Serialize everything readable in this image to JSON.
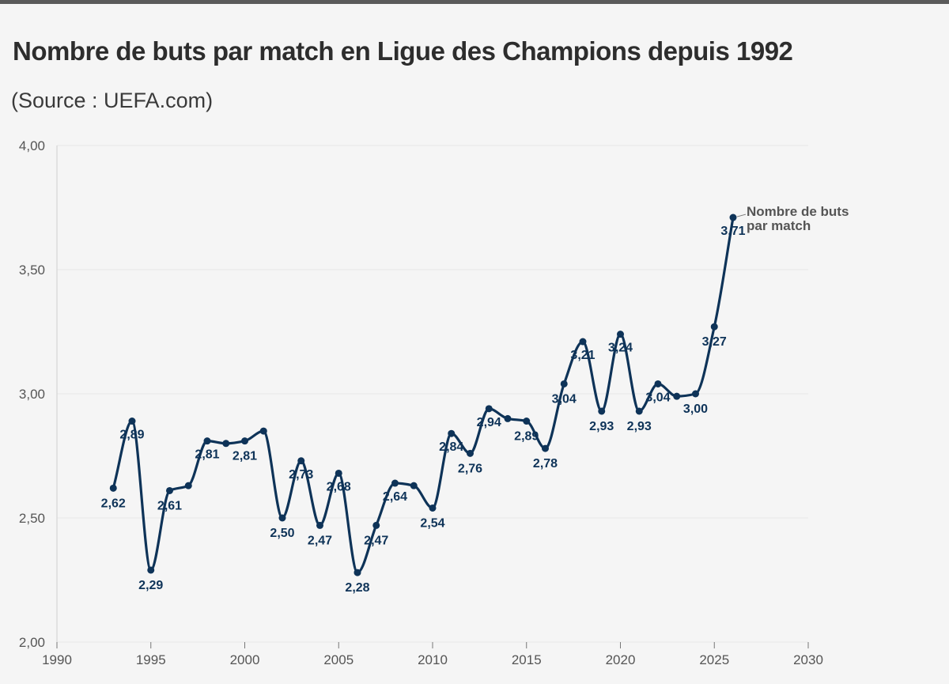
{
  "header": {
    "title": "Nombre de buts par match en Ligue des Champions depuis 1992",
    "subtitle": "(Source : UEFA.com)"
  },
  "colors": {
    "series": "#0e3358",
    "grid": "#e6e6e6",
    "axis": "#555555",
    "background": "#f5f5f5"
  },
  "chart_data": {
    "type": "line",
    "title": "Nombre de buts par match en Ligue des Champions depuis 1992",
    "subtitle": "(Source : UEFA.com)",
    "xlim": [
      1990,
      2030
    ],
    "ylim": [
      2.0,
      4.0
    ],
    "x_ticks": [
      "1990",
      "1995",
      "2000",
      "2005",
      "2010",
      "2015",
      "2020",
      "2025",
      "2030"
    ],
    "y_ticks": [
      "2,00",
      "2,50",
      "3,00",
      "3,50",
      "4,00"
    ],
    "grid": true,
    "series": [
      {
        "name": "Nombre de buts par match",
        "name_lines": [
          "Nombre de buts",
          "par match"
        ],
        "x": [
          1993,
          1994,
          1995,
          1996,
          1997,
          1998,
          1999,
          2000,
          2001,
          2002,
          2003,
          2004,
          2005,
          2006,
          2007,
          2008,
          2009,
          2010,
          2011,
          2012,
          2013,
          2014,
          2015,
          2016,
          2017,
          2018,
          2019,
          2020,
          2021,
          2022,
          2023,
          2024,
          2025,
          2026
        ],
        "y": [
          2.62,
          2.89,
          2.29,
          2.61,
          2.63,
          2.81,
          2.8,
          2.81,
          2.85,
          2.5,
          2.73,
          2.47,
          2.68,
          2.28,
          2.47,
          2.64,
          2.63,
          2.54,
          2.84,
          2.76,
          2.94,
          2.9,
          2.89,
          2.78,
          3.04,
          3.21,
          2.93,
          3.24,
          2.93,
          3.04,
          2.99,
          3.0,
          3.27,
          3.71
        ],
        "labels": [
          "2,62",
          "2,89",
          "2,29",
          "2,61",
          "",
          "2,81",
          "",
          "2,81",
          "",
          "2,50",
          "2,73",
          "2,47",
          "2,68",
          "2,28",
          "2,47",
          "2,64",
          "",
          "2,54",
          "2,84",
          "2,76",
          "2,94",
          "",
          "2,89",
          "2,78",
          "3,04",
          "3,21",
          "2,93",
          "3,24",
          "2,93",
          "3,04",
          "",
          "3,00",
          "3,27",
          "3,71"
        ]
      }
    ]
  }
}
